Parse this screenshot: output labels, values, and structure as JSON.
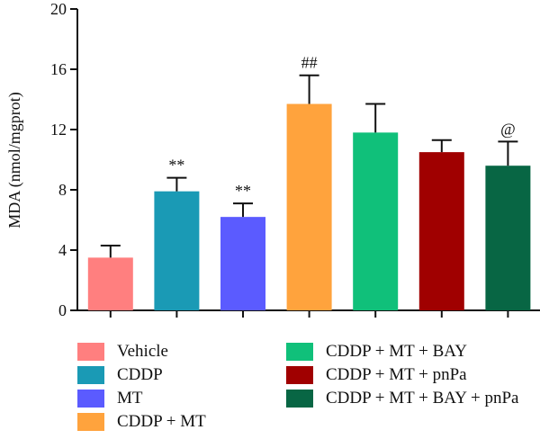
{
  "chart_data": {
    "type": "bar",
    "categories": [
      "Vehicle",
      "CDDP",
      "MT",
      "CDDP + MT",
      "CDDP + MT + BAY",
      "CDDP + MT + pnPa",
      "CDDP + MT + BAY + pnPa"
    ],
    "values": [
      3.5,
      7.9,
      6.2,
      13.7,
      11.8,
      10.5,
      9.6
    ],
    "errors": [
      0.8,
      0.9,
      0.9,
      1.9,
      1.9,
      0.8,
      1.6
    ],
    "annotations": [
      "",
      "**",
      "**",
      "##",
      "",
      "",
      "@"
    ],
    "colors": [
      "#ff7f7f",
      "#1a9ab5",
      "#5b5bff",
      "#ffa33d",
      "#10c07a",
      "#a00000",
      "#086644"
    ],
    "ylabel": "MDA (nmol/mgprot)",
    "xlabel": "",
    "ylim": [
      0,
      20
    ],
    "yticks": [
      0,
      4,
      8,
      12,
      16,
      20
    ],
    "legend_position": "bottom"
  }
}
